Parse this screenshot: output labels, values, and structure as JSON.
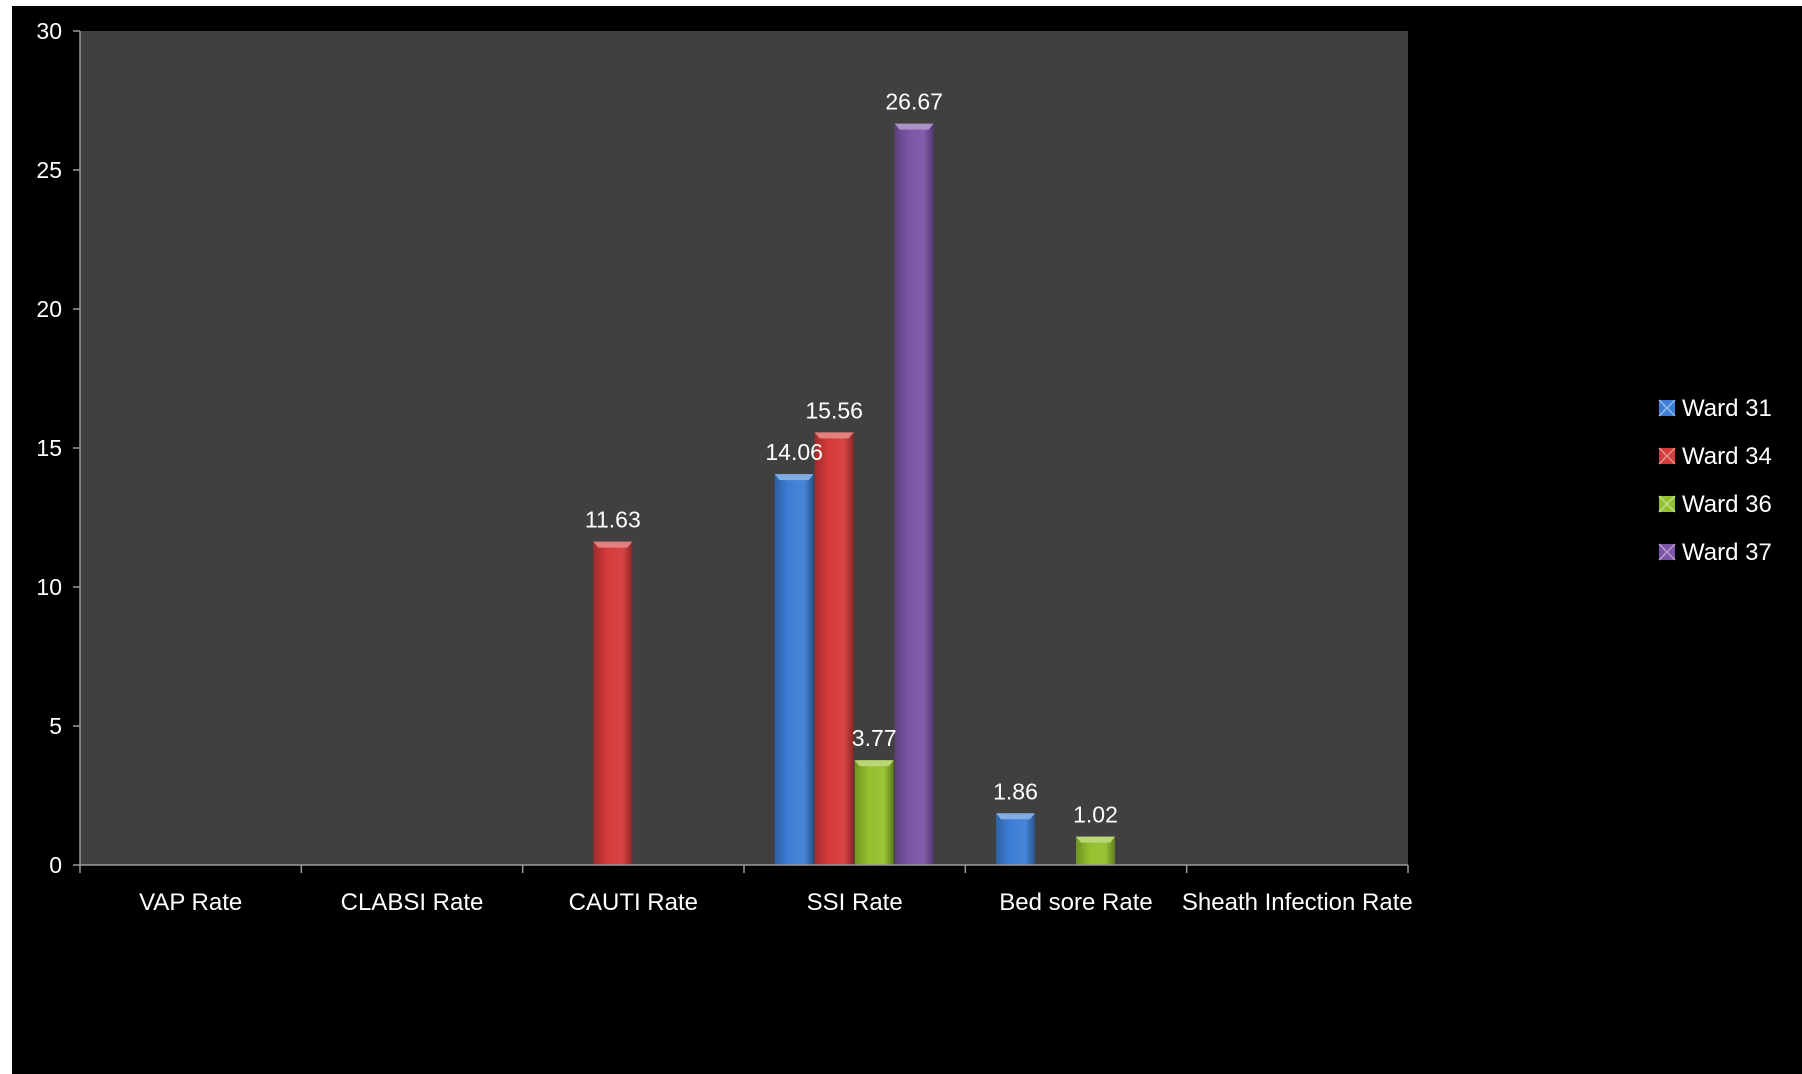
{
  "chart_data": {
    "type": "bar",
    "title": "",
    "xlabel": "",
    "ylabel": "",
    "ylim": [
      0,
      30
    ],
    "yticks": [
      0,
      5,
      10,
      15,
      20,
      25,
      30
    ],
    "grid": false,
    "legend_position": "right",
    "categories": [
      "VAP Rate",
      "CLABSI Rate",
      "CAUTI Rate",
      "SSI Rate",
      "Bed sore Rate",
      "Sheath Infection Rate"
    ],
    "series": [
      {
        "name": "Ward 31",
        "color": "#3d7fd6",
        "values": [
          null,
          null,
          null,
          14.06,
          1.86,
          null
        ]
      },
      {
        "name": "Ward 34",
        "color": "#d63a3a",
        "values": [
          null,
          null,
          11.63,
          15.56,
          null,
          null
        ]
      },
      {
        "name": "Ward 36",
        "color": "#94c12e",
        "values": [
          null,
          null,
          null,
          3.77,
          1.02,
          null
        ]
      },
      {
        "name": "Ward 37",
        "color": "#7c55a8",
        "values": [
          null,
          null,
          null,
          26.67,
          null,
          null
        ]
      }
    ],
    "data_labels": {
      "Ward 31": [
        "",
        "",
        "",
        "14.06",
        "1.86",
        ""
      ],
      "Ward 34": [
        "",
        "",
        "11.63",
        "15.56",
        "",
        ""
      ],
      "Ward 36": [
        "",
        "",
        "",
        "3.77",
        "1.02",
        ""
      ],
      "Ward 37": [
        "",
        "",
        "",
        "26.67",
        "",
        ""
      ]
    },
    "plot_background": "#404040",
    "background": "#000000"
  }
}
